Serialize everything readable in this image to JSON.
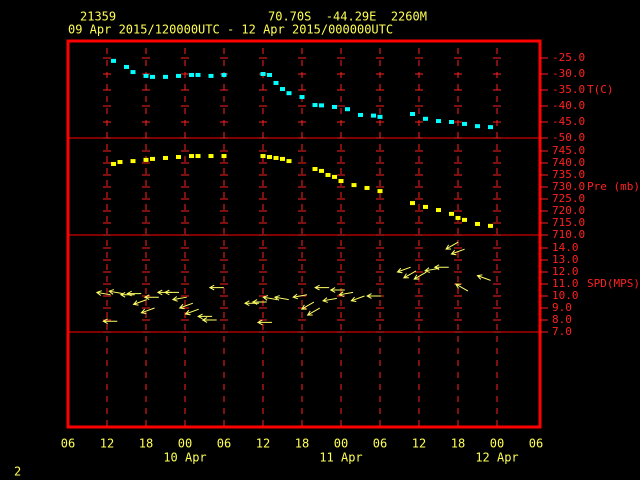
{
  "header": {
    "station": "21359",
    "location": "70.70S  -44.29E  2260M",
    "period": "09 Apr 2015/120000UTC - 12 Apr 2015/000000UTC",
    "page_number": "2"
  },
  "chart_data": [
    {
      "type": "scatter",
      "ylabel": "T(C)",
      "ylim": [
        -50,
        -20
      ],
      "yticks": [
        {
          "value": -25,
          "label": "-25.0"
        },
        {
          "value": -30,
          "label": "-30.0"
        },
        {
          "value": -35,
          "label": "-35.0"
        },
        {
          "value": -40,
          "label": "-40.0"
        },
        {
          "value": -45,
          "label": "-45.0"
        },
        {
          "value": -50,
          "label": "-50.0"
        }
      ],
      "series": [
        {
          "color": "#00ffff",
          "x": [
            7,
            9,
            10,
            12,
            13,
            15,
            17,
            19,
            20,
            22,
            24,
            30,
            31,
            32,
            33,
            34,
            36,
            38,
            39,
            41,
            43,
            45,
            47,
            48,
            53,
            55,
            57,
            59,
            61,
            63,
            65
          ],
          "values": [
            -25.9,
            -27.8,
            -29.4,
            -30.6,
            -30.9,
            -30.9,
            -30.6,
            -30.3,
            -30.3,
            -30.6,
            -30.3,
            -30,
            -30.3,
            -32.8,
            -34.7,
            -36,
            -37.2,
            -39.7,
            -39.8,
            -40.3,
            -41,
            -42.8,
            -43,
            -43.4,
            -42.5,
            -44,
            -44.7,
            -45,
            -45.6,
            -46.3,
            -46.6
          ]
        }
      ]
    },
    {
      "type": "scatter",
      "ylabel": "Pre (mb)",
      "ylim": [
        710,
        750
      ],
      "yticks": [
        {
          "value": 745,
          "label": "745.0"
        },
        {
          "value": 740,
          "label": "740.0"
        },
        {
          "value": 735,
          "label": "735.0"
        },
        {
          "value": 730,
          "label": "730.0"
        },
        {
          "value": 725,
          "label": "725.0"
        },
        {
          "value": 720,
          "label": "720.0"
        },
        {
          "value": 715,
          "label": "715.0"
        },
        {
          "value": 710,
          "label": "710.0"
        }
      ],
      "series": [
        {
          "color": "#ffff00",
          "x": [
            7,
            8,
            10,
            12,
            13,
            15,
            17,
            19,
            20,
            22,
            24,
            30,
            31,
            32,
            33,
            34,
            38,
            39,
            40,
            41,
            42,
            44,
            46,
            48,
            53,
            55,
            57,
            59,
            60,
            61,
            63,
            65
          ],
          "values": [
            739.6,
            740.4,
            740.8,
            741.3,
            741.7,
            742.1,
            742.5,
            742.9,
            742.9,
            742.9,
            742.9,
            742.9,
            742.5,
            742.1,
            741.7,
            740.8,
            737.5,
            736.7,
            735,
            734.2,
            732.5,
            730.8,
            729.6,
            728.3,
            723.3,
            721.7,
            720.4,
            718.8,
            717.1,
            716.3,
            714.6,
            713.8
          ]
        }
      ]
    },
    {
      "type": "vector",
      "ylabel": "SPD(MPS)",
      "ylim": [
        7,
        15
      ],
      "yticks": [
        {
          "value": 14,
          "label": "14.0"
        },
        {
          "value": 13,
          "label": "13.0"
        },
        {
          "value": 12,
          "label": "12.0"
        },
        {
          "value": 11,
          "label": "11.0"
        },
        {
          "value": 10,
          "label": "10.0"
        },
        {
          "value": 9,
          "label": "9.0"
        },
        {
          "value": 8,
          "label": "8.0"
        },
        {
          "value": 7,
          "label": "7.0"
        }
      ],
      "xlim": [
        0,
        72
      ],
      "xticks": [
        {
          "value": 0,
          "label": "06"
        },
        {
          "value": 6,
          "label": "12"
        },
        {
          "value": 12,
          "label": "18"
        },
        {
          "value": 18,
          "label": "00"
        },
        {
          "value": 24,
          "label": "06"
        },
        {
          "value": 30,
          "label": "12"
        },
        {
          "value": 36,
          "label": "18"
        },
        {
          "value": 42,
          "label": "00"
        },
        {
          "value": 48,
          "label": "06"
        },
        {
          "value": 54,
          "label": "12"
        },
        {
          "value": 60,
          "label": "18"
        },
        {
          "value": 66,
          "label": "00"
        },
        {
          "value": 72,
          "label": "06"
        }
      ],
      "date_labels": [
        {
          "value": 18,
          "label": "10 Apr"
        },
        {
          "value": 42,
          "label": "11 Apr"
        },
        {
          "value": 66,
          "label": "12 Apr"
        }
      ],
      "series": [
        {
          "color": "#ffff66",
          "x": [
            5.5,
            6.5,
            7.4,
            9.2,
            10.2,
            11.1,
            12.3,
            12.9,
            14.9,
            16,
            17.2,
            18.2,
            19.1,
            21.1,
            21.8,
            22.9,
            28.3,
            29.5,
            30.3,
            31.1,
            32.9,
            35.7,
            36.9,
            37.8,
            39.1,
            40.3,
            41.5,
            42.8,
            44.6,
            47.1,
            51.7,
            52.6,
            54.2,
            56,
            57.5,
            59.1,
            60,
            60.6,
            64
          ],
          "values": [
            10.2,
            7.9,
            10.3,
            10.1,
            10.2,
            9.5,
            8.8,
            9.9,
            10.3,
            10.3,
            9.8,
            9.2,
            8.7,
            8.3,
            8,
            10.7,
            9.4,
            9.5,
            7.8,
            9.8,
            9.8,
            10,
            9.2,
            8.7,
            10.7,
            9.7,
            10.5,
            10.2,
            9.8,
            10,
            12.2,
            11.8,
            11.7,
            12.2,
            12.4,
            14.2,
            13.7,
            10.7,
            11.5
          ],
          "arrow_angle": [
            170,
            180,
            170,
            180,
            180,
            200,
            200,
            180,
            180,
            180,
            190,
            200,
            200,
            180,
            180,
            180,
            180,
            180,
            180,
            170,
            170,
            190,
            210,
            210,
            180,
            190,
            180,
            190,
            200,
            180,
            200,
            210,
            210,
            190,
            180,
            210,
            200,
            150,
            160
          ]
        }
      ]
    }
  ]
}
